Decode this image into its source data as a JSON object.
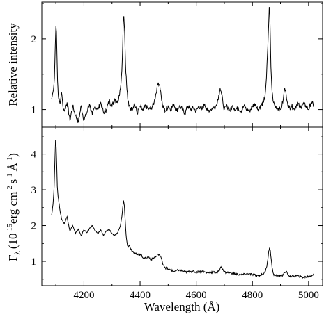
{
  "chart_data": {
    "type": "line",
    "xlabel": "Wavelength (Å)",
    "xlim": [
      4050,
      5050
    ],
    "xticks": [
      4200,
      4400,
      4600,
      4800,
      5000
    ],
    "xtick_labels": [
      "4200",
      "4400",
      "4600",
      "4800",
      "5000"
    ],
    "panels": [
      {
        "ylabel": "Relative intensity",
        "ylim": [
          0.75,
          2.52
        ],
        "yticks": [
          1,
          2
        ],
        "ytick_labels": [
          "1",
          "2"
        ],
        "series": [
          {
            "x": [
              4085,
              4090,
              4095,
              4098,
              4100,
              4102,
              4104,
              4106,
              4110,
              4115,
              4120,
              4125,
              4130,
              4140,
              4150,
              4160,
              4170,
              4180,
              4190,
              4200,
              4210,
              4220,
              4230,
              4240,
              4250,
              4260,
              4270,
              4280,
              4290,
              4300,
              4310,
              4320,
              4325,
              4330,
              4335,
              4338,
              4340,
              4342,
              4345,
              4348,
              4352,
              4356,
              4360,
              4370,
              4380,
              4390,
              4400,
              4410,
              4420,
              4430,
              4440,
              4450,
              4460,
              4465,
              4470,
              4475,
              4480,
              4490,
              4500,
              4510,
              4520,
              4530,
              4540,
              4550,
              4560,
              4570,
              4580,
              4590,
              4600,
              4610,
              4620,
              4630,
              4640,
              4650,
              4660,
              4670,
              4675,
              4680,
              4685,
              4690,
              4695,
              4700,
              4710,
              4720,
              4730,
              4740,
              4750,
              4760,
              4770,
              4780,
              4790,
              4800,
              4810,
              4820,
              4830,
              4840,
              4845,
              4850,
              4855,
              4858,
              4860,
              4862,
              4864,
              4866,
              4870,
              4875,
              4880,
              4890,
              4900,
              4905,
              4910,
              4915,
              4920,
              4925,
              4930,
              4940,
              4950,
              4960,
              4970,
              4980,
              4990,
              5000,
              5010,
              5020
            ],
            "y": [
              1.15,
              1.25,
              1.45,
              1.9,
              2.18,
              2.1,
              1.75,
              1.4,
              1.15,
              1.08,
              1.25,
              1.05,
              0.98,
              1.1,
              0.85,
              1.05,
              0.92,
              0.82,
              1.05,
              0.85,
              0.95,
              1.08,
              0.92,
              1.05,
              1.0,
              1.1,
              0.95,
              1.0,
              1.12,
              1.05,
              1.15,
              1.1,
              1.2,
              1.3,
              1.55,
              1.9,
              2.25,
              2.32,
              2.1,
              1.65,
              1.35,
              1.15,
              1.05,
              1.0,
              1.08,
              0.95,
              1.05,
              0.98,
              1.05,
              1.0,
              1.02,
              1.1,
              1.3,
              1.38,
              1.35,
              1.2,
              1.05,
              0.98,
              1.05,
              1.0,
              1.08,
              0.98,
              1.05,
              1.0,
              0.95,
              1.05,
              1.0,
              1.02,
              0.98,
              1.05,
              1.0,
              1.08,
              0.98,
              1.0,
              1.02,
              1.05,
              1.1,
              1.2,
              1.3,
              1.22,
              1.1,
              1.0,
              1.05,
              0.98,
              1.05,
              1.0,
              1.02,
              0.98,
              1.05,
              1.0,
              0.98,
              1.05,
              1.08,
              1.0,
              1.05,
              1.1,
              1.2,
              1.45,
              1.9,
              2.2,
              2.45,
              2.35,
              2.0,
              1.6,
              1.25,
              1.1,
              1.05,
              1.02,
              1.0,
              1.05,
              1.15,
              1.3,
              1.22,
              1.1,
              1.02,
              1.05,
              1.0,
              1.1,
              1.02,
              1.08,
              1.05,
              1.0,
              1.1,
              1.05
            ]
          }
        ]
      },
      {
        "ylabel": "F",
        "ylabel_sub": "λ",
        "ylabel_units": "(10",
        "ylabel_exp1": "-15",
        "ylabel_mid1": "erg cm",
        "ylabel_exp2": "-2",
        "ylabel_mid2": "s",
        "ylabel_exp3": "-1",
        "ylabel_mid3": "Å",
        "ylabel_exp4": "-1",
        "ylabel_close": ")",
        "ylim": [
          0.32,
          4.75
        ],
        "yticks": [
          1,
          2,
          3,
          4
        ],
        "ytick_labels": [
          "1",
          "2",
          "3",
          "4"
        ],
        "series": [
          {
            "x": [
              4085,
              4090,
              4094,
              4097,
              4099,
              4101,
              4103,
              4105,
              4108,
              4112,
              4116,
              4120,
              4130,
              4140,
              4150,
              4160,
              4170,
              4180,
              4190,
              4200,
              4210,
              4220,
              4230,
              4240,
              4250,
              4260,
              4270,
              4280,
              4290,
              4300,
              4310,
              4320,
              4325,
              4330,
              4335,
              4338,
              4341,
              4344,
              4347,
              4350,
              4354,
              4358,
              4362,
              4370,
              4380,
              4390,
              4400,
              4410,
              4420,
              4430,
              4440,
              4450,
              4460,
              4465,
              4470,
              4475,
              4480,
              4490,
              4500,
              4520,
              4540,
              4560,
              4580,
              4600,
              4620,
              4640,
              4660,
              4670,
              4680,
              4685,
              4690,
              4695,
              4700,
              4720,
              4740,
              4760,
              4780,
              4800,
              4820,
              4830,
              4840,
              4845,
              4850,
              4855,
              4858,
              4861,
              4864,
              4867,
              4870,
              4875,
              4880,
              4890,
              4900,
              4910,
              4915,
              4920,
              4925,
              4930,
              4940,
              4960,
              4980,
              5000,
              5010,
              5020
            ],
            "y": [
              2.3,
              2.6,
              3.1,
              3.9,
              4.4,
              4.2,
              3.7,
              3.1,
              2.8,
              2.6,
              2.35,
              2.2,
              2.05,
              2.25,
              1.85,
              2.0,
              1.78,
              1.9,
              1.72,
              1.88,
              1.8,
              1.92,
              2.0,
              1.85,
              1.78,
              1.88,
              1.72,
              1.85,
              1.9,
              1.78,
              1.72,
              1.8,
              1.9,
              2.0,
              2.25,
              2.5,
              2.7,
              2.55,
              2.15,
              1.75,
              1.5,
              1.4,
              1.45,
              1.3,
              1.25,
              1.18,
              1.2,
              1.1,
              1.08,
              1.12,
              1.05,
              1.1,
              1.15,
              1.2,
              1.18,
              1.1,
              0.95,
              0.82,
              0.78,
              0.72,
              0.76,
              0.7,
              0.72,
              0.7,
              0.72,
              0.68,
              0.7,
              0.68,
              0.72,
              0.8,
              0.85,
              0.78,
              0.7,
              0.68,
              0.65,
              0.62,
              0.65,
              0.63,
              0.6,
              0.62,
              0.65,
              0.7,
              0.82,
              1.05,
              1.28,
              1.38,
              1.3,
              1.05,
              0.82,
              0.65,
              0.6,
              0.6,
              0.6,
              0.62,
              0.68,
              0.72,
              0.65,
              0.6,
              0.58,
              0.6,
              0.55,
              0.58,
              0.6,
              0.65
            ]
          }
        ]
      }
    ]
  },
  "colors": {
    "line": "#000000",
    "axis": "#000000",
    "background": "#ffffff"
  }
}
